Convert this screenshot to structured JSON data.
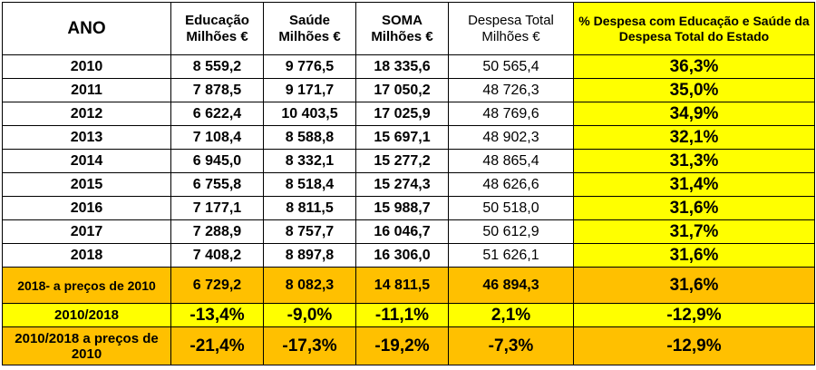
{
  "header": {
    "ano": "ANO",
    "educacao": [
      "Educação",
      "Milhões €"
    ],
    "saude": [
      "Saúde",
      "Milhões €"
    ],
    "soma": [
      "SOMA",
      "Milhões €"
    ],
    "despesa_total": [
      "Despesa Total",
      "Milhões €"
    ],
    "percent": "% Despesa com Educação e Saúde da Despesa Total do Estado"
  },
  "rows": [
    {
      "ano": "2010",
      "educacao": "8 559,2",
      "saude": "9 776,5",
      "soma": "18 335,6",
      "total": "50 565,4",
      "pct": "36,3%"
    },
    {
      "ano": "2011",
      "educacao": "7 878,5",
      "saude": "9 171,7",
      "soma": "17 050,2",
      "total": "48 726,3",
      "pct": "35,0%"
    },
    {
      "ano": "2012",
      "educacao": "6 622,4",
      "saude": "10 403,5",
      "soma": "17 025,9",
      "total": "48 769,6",
      "pct": "34,9%"
    },
    {
      "ano": "2013",
      "educacao": "7 108,4",
      "saude": "8 588,8",
      "soma": "15 697,1",
      "total": "48 902,3",
      "pct": "32,1%"
    },
    {
      "ano": "2014",
      "educacao": "6 945,0",
      "saude": "8 332,1",
      "soma": "15 277,2",
      "total": "48 865,4",
      "pct": "31,3%"
    },
    {
      "ano": "2015",
      "educacao": "6 755,8",
      "saude": "8 518,4",
      "soma": "15 274,3",
      "total": "48 626,6",
      "pct": "31,4%"
    },
    {
      "ano": "2016",
      "educacao": "7 177,1",
      "saude": "8 811,5",
      "soma": "15 988,7",
      "total": "50 518,0",
      "pct": "31,6%"
    },
    {
      "ano": "2017",
      "educacao": "7 288,9",
      "saude": "8 757,7",
      "soma": "16 046,7",
      "total": "50 612,9",
      "pct": "31,7%"
    },
    {
      "ano": "2018",
      "educacao": "7 408,2",
      "saude": "8 897,8",
      "soma": "16 306,0",
      "total": "51 626,1",
      "pct": "31,6%"
    }
  ],
  "precos2010": {
    "ano": "2018- a preços de 2010",
    "educacao": "6 729,2",
    "saude": "8 082,3",
    "soma": "14 811,5",
    "total": "46 894,3",
    "pct": "31,6%"
  },
  "var": {
    "ano": "2010/2018",
    "educacao": "-13,4%",
    "saude": "-9,0%",
    "soma": "-11,1%",
    "total": "2,1%",
    "pct": "-12,9%"
  },
  "var_precos": {
    "ano": "2010/2018 a preços de 2010",
    "educacao": "-21,4%",
    "saude": "-17,3%",
    "soma": "-19,2%",
    "total": "-7,3%",
    "pct": "-12,9%"
  },
  "colors": {
    "yellow": "#ffff00",
    "orange": "#ffc000"
  }
}
